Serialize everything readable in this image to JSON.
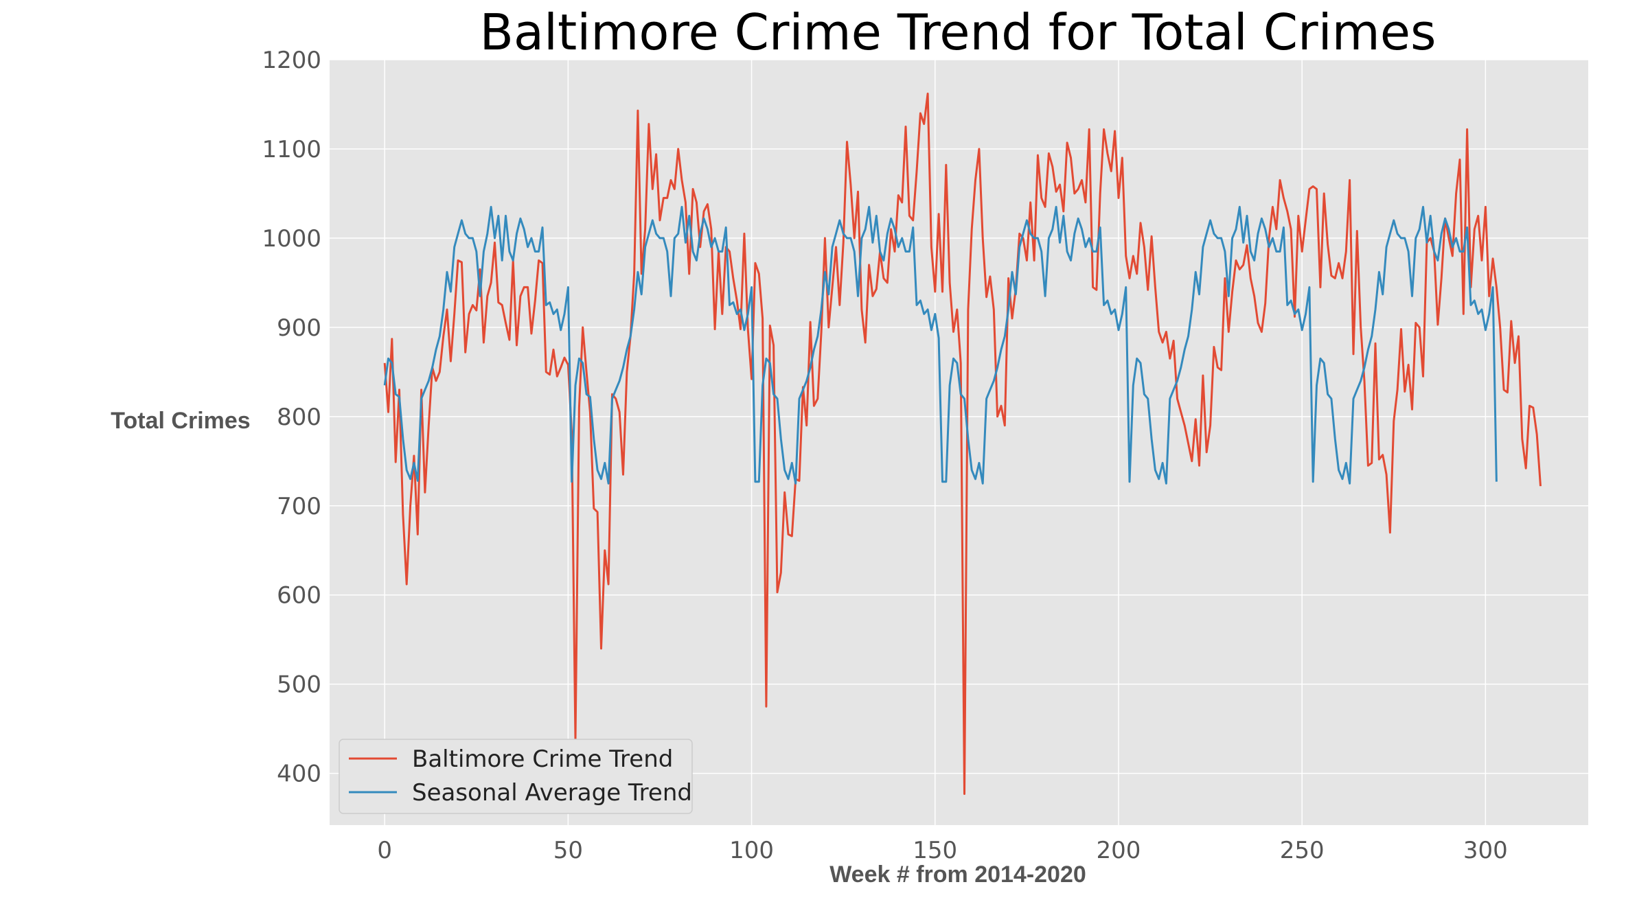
{
  "chart_data": {
    "type": "line",
    "title": "Baltimore Crime Trend for Total Crimes",
    "xlabel": "Week # from 2014-2020",
    "ylabel": "Total Crimes",
    "xlim": [
      -15,
      328
    ],
    "ylim": [
      342,
      1200
    ],
    "x_ticks": [
      0,
      50,
      100,
      150,
      200,
      250,
      300
    ],
    "y_ticks": [
      400,
      500,
      600,
      700,
      800,
      900,
      1000,
      1100,
      1200
    ],
    "grid": true,
    "legend_position": "lower-left",
    "colors": {
      "plot_background": "#e5e5e5",
      "grid": "#ffffff"
    },
    "series": [
      {
        "name": "Baltimore Crime Trend",
        "color": "#e24a33",
        "x_start": 0,
        "values": [
          860,
          805,
          887,
          749,
          830,
          690,
          612,
          700,
          756,
          668,
          830,
          715,
          790,
          855,
          840,
          850,
          890,
          920,
          862,
          915,
          975,
          973,
          872,
          915,
          925,
          919,
          965,
          883,
          935,
          950,
          995,
          928,
          925,
          905,
          886,
          975,
          880,
          935,
          945,
          945,
          893,
          930,
          975,
          972,
          850,
          847,
          875,
          845,
          855,
          866,
          858,
          780,
          437,
          810,
          900,
          850,
          805,
          697,
          693,
          540,
          650,
          612,
          825,
          820,
          805,
          735,
          850,
          890,
          960,
          1143,
          960,
          1010,
          1128,
          1055,
          1094,
          1020,
          1045,
          1045,
          1065,
          1055,
          1100,
          1065,
          1040,
          960,
          1055,
          1040,
          990,
          1030,
          1038,
          1010,
          898,
          985,
          915,
          990,
          985,
          955,
          930,
          898,
          1005,
          898,
          842,
          972,
          960,
          910,
          475,
          902,
          880,
          603,
          625,
          715,
          668,
          666,
          730,
          728,
          833,
          790,
          906,
          812,
          820,
          895,
          1000,
          900,
          945,
          990,
          925,
          995,
          1108,
          1060,
          1000,
          1052,
          920,
          883,
          970,
          935,
          943,
          985,
          955,
          950,
          1010,
          985,
          1048,
          1040,
          1125,
          1025,
          1020,
          1075,
          1140,
          1128,
          1162,
          990,
          940,
          1027,
          940,
          1082,
          950,
          895,
          920,
          860,
          377,
          920,
          1010,
          1065,
          1100,
          1000,
          934,
          957,
          920,
          800,
          812,
          790,
          955,
          910,
          943,
          1005,
          1000,
          975,
          1040,
          975,
          1093,
          1045,
          1035,
          1095,
          1080,
          1052,
          1060,
          1030,
          1107,
          1090,
          1050,
          1055,
          1065,
          1040,
          1122,
          945,
          942,
          1050,
          1122,
          1095,
          1075,
          1120,
          1045,
          1090,
          980,
          955,
          980,
          960,
          1017,
          990,
          942,
          1002,
          945,
          895,
          883,
          895,
          865,
          885,
          820,
          805,
          790,
          770,
          750,
          797,
          745,
          846,
          760,
          790,
          878,
          855,
          852,
          955,
          895,
          940,
          975,
          965,
          970,
          992,
          955,
          935,
          905,
          895,
          927,
          1000,
          1035,
          1010,
          1065,
          1045,
          1030,
          1010,
          912,
          1025,
          985,
          1020,
          1055,
          1058,
          1055,
          945,
          1050,
          993,
          958,
          955,
          972,
          955,
          985,
          1065,
          870,
          1008,
          900,
          840,
          745,
          748,
          882,
          752,
          757,
          735,
          670,
          795,
          830,
          898,
          828,
          858,
          808,
          905,
          900,
          845,
          995,
          1000,
          985,
          903,
          955,
          1022,
          1000,
          980,
          1050,
          1088,
          915,
          1122,
          945,
          1010,
          1025,
          975,
          1035,
          935,
          977,
          945,
          900,
          830,
          827,
          907,
          860,
          890,
          775,
          742,
          812,
          810,
          780,
          722
        ]
      },
      {
        "name": "Seasonal Average Trend",
        "color": "#348abd",
        "x_start": 0,
        "values": [
          835,
          865,
          860,
          825,
          822,
          775,
          740,
          730,
          748,
          728,
          820,
          830,
          840,
          855,
          875,
          890,
          920,
          962,
          940,
          990,
          1005,
          1020,
          1005,
          1000,
          1000,
          985,
          935,
          985,
          1005,
          1035,
          1000,
          1025,
          975,
          1025,
          985,
          975,
          1005,
          1022,
          1010,
          990,
          1000,
          985,
          985,
          1012,
          925,
          928,
          915,
          920,
          897,
          915,
          945,
          727,
          835,
          865,
          860,
          825,
          822,
          775,
          740,
          730,
          748,
          725,
          820,
          830,
          840,
          855,
          875,
          890,
          920,
          962,
          937,
          990,
          1005,
          1020,
          1005,
          1000,
          1000,
          985,
          935,
          1000,
          1005,
          1035,
          995,
          1025,
          985,
          975,
          1005,
          1022,
          1010,
          990,
          1000,
          985,
          985,
          1012,
          925,
          928,
          915,
          920,
          897,
          915,
          945,
          727,
          727,
          835,
          865,
          860,
          825,
          820,
          775,
          740,
          730,
          748,
          725,
          820,
          830,
          840,
          855,
          875,
          890,
          920,
          962,
          937,
          990,
          1005,
          1020,
          1005,
          1000,
          1000,
          985,
          935,
          1000,
          1010,
          1035,
          995,
          1025,
          985,
          975,
          1005,
          1022,
          1010,
          990,
          1000,
          985,
          985,
          1012,
          925,
          930,
          915,
          920,
          897,
          915,
          888,
          727,
          727,
          835,
          865,
          860,
          825,
          820,
          775,
          740,
          730,
          748,
          725,
          820,
          830,
          840,
          855,
          875,
          890,
          920,
          962,
          937,
          990,
          1005,
          1020,
          1005,
          1000,
          1000,
          985,
          935,
          1000,
          1010,
          1035,
          995,
          1025,
          985,
          975,
          1005,
          1022,
          1010,
          990,
          1000,
          985,
          985,
          1012,
          925,
          930,
          915,
          920,
          897,
          915,
          945,
          727,
          835,
          865,
          860,
          825,
          820,
          775,
          740,
          730,
          748,
          725,
          820,
          830,
          840,
          855,
          875,
          890,
          920,
          962,
          937,
          990,
          1005,
          1020,
          1005,
          1000,
          1000,
          985,
          935,
          1000,
          1010,
          1035,
          995,
          1025,
          985,
          975,
          1005,
          1022,
          1010,
          990,
          1000,
          985,
          985,
          1012,
          925,
          930,
          915,
          920,
          897,
          915,
          945,
          727,
          835,
          865,
          860,
          825,
          820,
          775,
          740,
          730,
          748,
          725,
          820,
          830,
          840,
          855,
          875,
          890,
          920,
          962,
          937,
          990,
          1005,
          1020,
          1005,
          1000,
          1000,
          985,
          935,
          1000,
          1010,
          1035,
          995,
          1025,
          985,
          975,
          1005,
          1022,
          1010,
          990,
          1000,
          985,
          985,
          1012,
          925,
          930,
          915,
          920,
          897,
          915,
          945,
          727
        ]
      }
    ]
  }
}
